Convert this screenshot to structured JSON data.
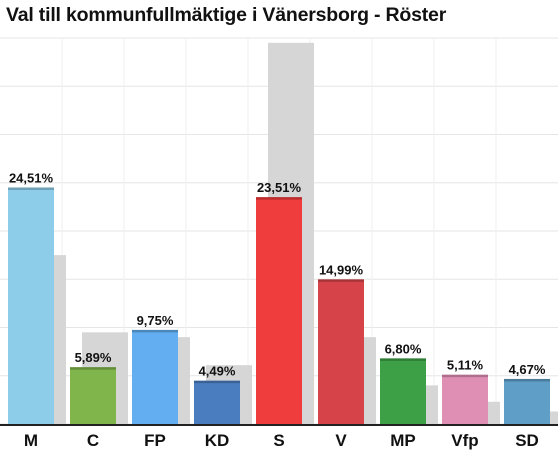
{
  "chart_data": {
    "type": "bar",
    "title": "Val till kommunfullmäktige i Vänersborg - Röster",
    "xlabel": "",
    "ylabel": "",
    "ylim": [
      0,
      40
    ],
    "grid": true,
    "categories": [
      "M",
      "C",
      "FP",
      "KD",
      "S",
      "V",
      "MP",
      "Vfp",
      "SD"
    ],
    "series": [
      {
        "values": [
          24.51,
          5.89,
          9.75,
          4.49,
          23.51,
          14.99,
          6.8,
          5.11,
          4.67
        ],
        "labels": [
          "24,51%",
          "5,89%",
          "9,75%",
          "4,49%",
          "23,51%",
          "14,99%",
          "6,80%",
          "5,11%",
          "4,67%"
        ]
      },
      {
        "values": [
          17.5,
          9.5,
          9.0,
          6.1,
          39.5,
          9.0,
          4.0,
          2.3,
          1.3
        ]
      }
    ],
    "colors": [
      "#8ecde9",
      "#7fb54a",
      "#62aef0",
      "#4a7dbf",
      "#ef3c3c",
      "#d6444a",
      "#3da046",
      "#e08fb4",
      "#5f9ec6"
    ],
    "ghost_color": "#d6d6d6"
  }
}
